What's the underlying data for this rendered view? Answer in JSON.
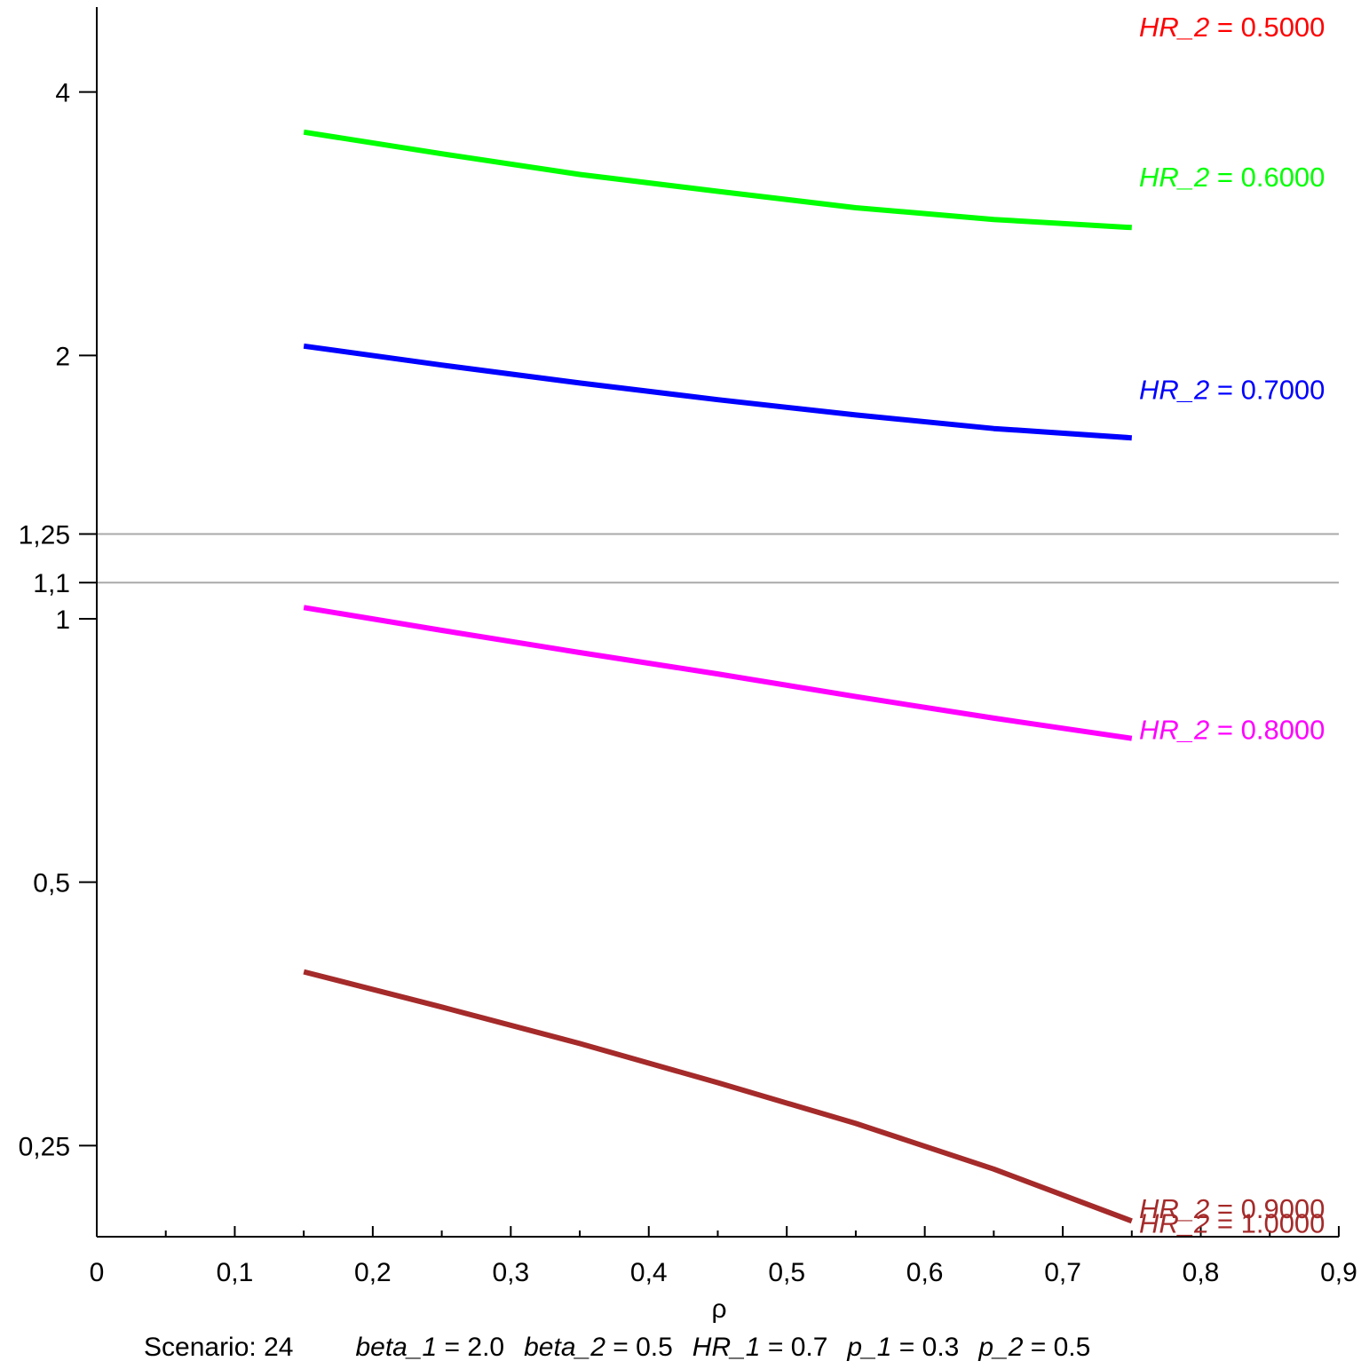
{
  "chart_data": {
    "type": "line",
    "xlabel": "ρ",
    "ylabel": "",
    "xlim": [
      0,
      0.9
    ],
    "ylim": [
      0.2,
      4.5
    ],
    "y_scale": "log",
    "x_ticks": [
      0,
      0.1,
      0.2,
      0.3,
      0.4,
      0.5,
      0.6,
      0.7,
      0.8,
      0.9
    ],
    "x_tick_labels": [
      "0",
      "0,1",
      "0,2",
      "0,3",
      "0,4",
      "0,5",
      "0,6",
      "0,7",
      "0,8",
      "0,9"
    ],
    "y_ticks": [
      0.25,
      0.5,
      1,
      1.1,
      1.25,
      2,
      4
    ],
    "y_tick_labels": [
      "0,25",
      "0,5",
      "1",
      "1,1",
      "1,25",
      "2",
      "4"
    ],
    "reference_lines": [
      {
        "y": 1.25,
        "color": "#aaaaaa"
      },
      {
        "y": 1.1,
        "color": "#aaaaaa"
      }
    ],
    "grid": false,
    "series": [
      {
        "name": "0.5000",
        "color": "#ff0000",
        "label_y": 4.75,
        "x": [],
        "y": []
      },
      {
        "name": "0.6000",
        "color": "#00ff00",
        "label_y": 3.2,
        "x": [
          0.15,
          0.25,
          0.35,
          0.45,
          0.55,
          0.65,
          0.75
        ],
        "y": [
          3.6,
          3.4,
          3.22,
          3.08,
          2.95,
          2.86,
          2.8
        ]
      },
      {
        "name": "0.7000",
        "color": "#0000ff",
        "label_y": 1.83,
        "x": [
          0.15,
          0.25,
          0.35,
          0.45,
          0.55,
          0.65,
          0.75
        ],
        "y": [
          2.05,
          1.95,
          1.86,
          1.78,
          1.71,
          1.65,
          1.61
        ]
      },
      {
        "name": "0.8000",
        "color": "#ff00ff",
        "label_y": 0.748,
        "x": [
          0.15,
          0.25,
          0.35,
          0.45,
          0.55,
          0.65,
          0.75
        ],
        "y": [
          1.03,
          0.97,
          0.915,
          0.865,
          0.815,
          0.77,
          0.73
        ]
      },
      {
        "name": "0.9000",
        "color": "#a52a2a",
        "label_y": 0.212,
        "x": [],
        "y": []
      },
      {
        "name": "1.0000",
        "color": "#a52a2a",
        "label_y": 0.204,
        "x": [
          0.15,
          0.25,
          0.35,
          0.45,
          0.55,
          0.65,
          0.75
        ],
        "y": [
          0.395,
          0.36,
          0.327,
          0.295,
          0.265,
          0.235,
          0.205
        ]
      }
    ],
    "series_label_prefix": "HR_2",
    "series_label_eq": "=",
    "caption": {
      "scenario": "Scenario: 24",
      "params": [
        {
          "name": "beta_1",
          "value": "2.0"
        },
        {
          "name": "beta_2",
          "value": "0.5"
        },
        {
          "name": "HR_1",
          "value": "0.7"
        },
        {
          "name": "p_1",
          "value": "0.3"
        },
        {
          "name": "p_2",
          "value": "0.5"
        }
      ],
      "eq": "="
    }
  }
}
